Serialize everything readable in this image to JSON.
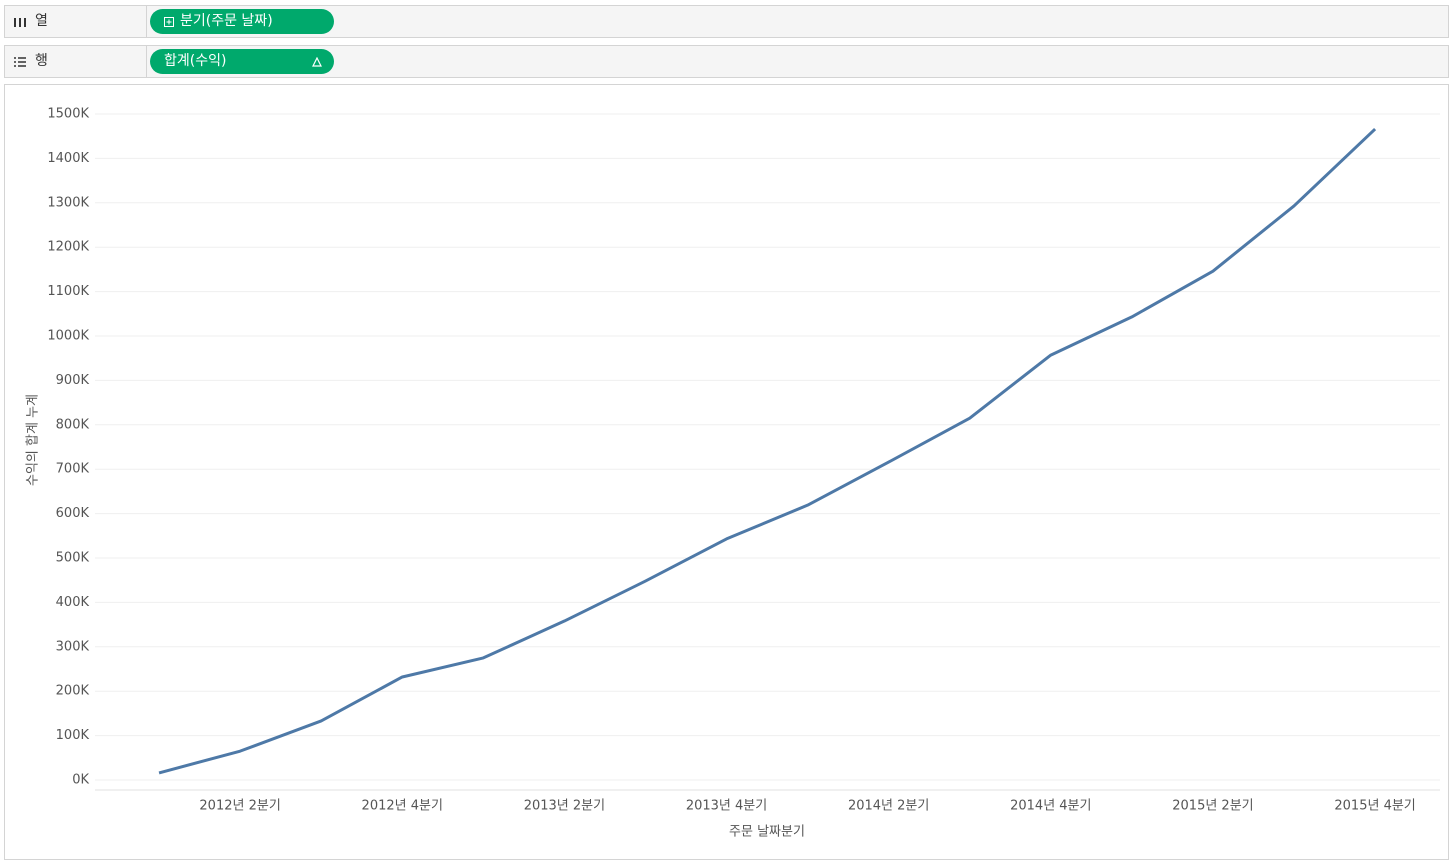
{
  "shelves": {
    "columns": {
      "label": "열",
      "pill": "분기(주문 날짜)"
    },
    "rows": {
      "label": "행",
      "pill": "합계(수익)"
    }
  },
  "chart_data": {
    "type": "line",
    "x_label": "주문 날짜분기",
    "y_label": "수익의 합계 누계",
    "categories": [
      null,
      "2012년 2분기",
      null,
      "2012년 4분기",
      null,
      "2013년 2분기",
      null,
      "2013년 4분기",
      null,
      "2014년 2분기",
      null,
      "2014년 4분기",
      null,
      "2015년 2분기",
      null,
      "2015년 4분기"
    ],
    "series": [
      {
        "name": "합계(수익)",
        "color": "#4e79a7",
        "values": [
          16,
          65,
          133,
          232,
          275,
          358,
          448,
          543,
          619,
          716,
          815,
          957,
          1043,
          1146,
          1293,
          1466
        ]
      }
    ],
    "ylim": [
      0,
      1500
    ],
    "yticks": [
      {
        "value": 0,
        "label": "0K"
      },
      {
        "value": 100,
        "label": "100K"
      },
      {
        "value": 200,
        "label": "200K"
      },
      {
        "value": 300,
        "label": "300K"
      },
      {
        "value": 400,
        "label": "400K"
      },
      {
        "value": 500,
        "label": "500K"
      },
      {
        "value": 600,
        "label": "600K"
      },
      {
        "value": 700,
        "label": "700K"
      },
      {
        "value": 800,
        "label": "800K"
      },
      {
        "value": 900,
        "label": "900K"
      },
      {
        "value": 1000,
        "label": "1000K"
      },
      {
        "value": 1100,
        "label": "1100K"
      },
      {
        "value": 1200,
        "label": "1200K"
      },
      {
        "value": 1300,
        "label": "1300K"
      },
      {
        "value": 1400,
        "label": "1400K"
      },
      {
        "value": 1500,
        "label": "1500K"
      }
    ],
    "grid": true
  }
}
